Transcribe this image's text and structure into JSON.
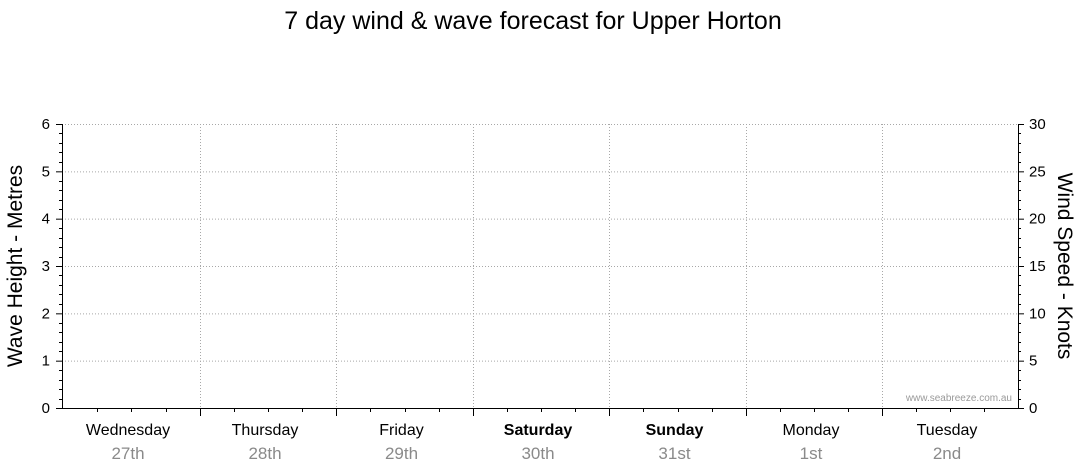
{
  "chart_data": {
    "type": "line",
    "title": "7 day wind & wave forecast for Upper Horton",
    "left_axis": {
      "label": "Wave Height - Metres",
      "ylim": [
        0,
        6
      ],
      "ticks": [
        0,
        1,
        2,
        3,
        4,
        5,
        6
      ]
    },
    "right_axis": {
      "label": "Wind Speed - Knots",
      "ylim": [
        0,
        30
      ],
      "ticks": [
        0,
        5,
        10,
        15,
        20,
        25,
        30
      ]
    },
    "categories": [
      {
        "day": "Wednesday",
        "date": "27th",
        "bold": false
      },
      {
        "day": "Thursday",
        "date": "28th",
        "bold": false
      },
      {
        "day": "Friday",
        "date": "29th",
        "bold": false
      },
      {
        "day": "Saturday",
        "date": "30th",
        "bold": true
      },
      {
        "day": "Sunday",
        "date": "31st",
        "bold": true
      },
      {
        "day": "Monday",
        "date": "1st",
        "bold": false
      },
      {
        "day": "Tuesday",
        "date": "2nd",
        "bold": false
      }
    ],
    "series": [],
    "grid": true,
    "watermark": "www.seabreeze.com.au"
  }
}
